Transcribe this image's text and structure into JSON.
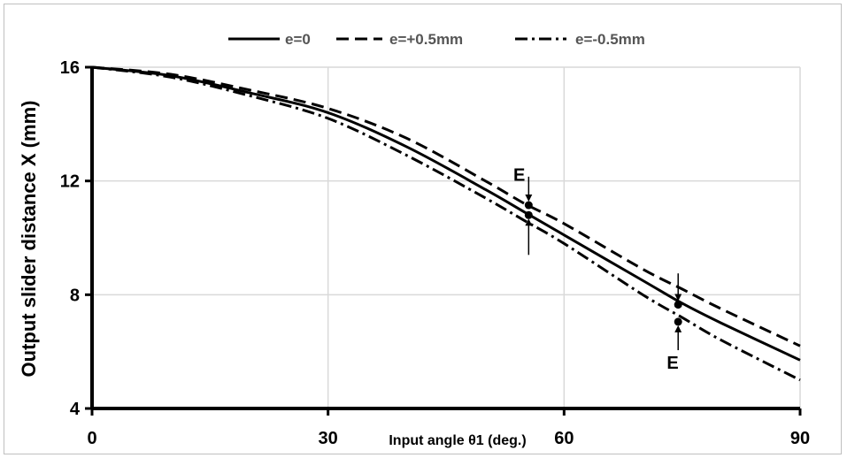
{
  "chart_data": {
    "type": "line",
    "title": "",
    "xlabel": "Input angle θ1 (deg.)",
    "ylabel": "Output slider distance X (mm)",
    "xlim": [
      0,
      90
    ],
    "ylim": [
      4,
      16
    ],
    "xticks": [
      0,
      30,
      60,
      90
    ],
    "yticks": [
      4,
      8,
      12,
      16
    ],
    "grid": true,
    "legend_position": "top",
    "series": [
      {
        "name": "e=0",
        "style": "solid",
        "color": "#000000",
        "x": [
          0,
          10,
          20,
          30,
          40,
          50,
          55,
          60,
          70,
          75,
          80,
          90
        ],
        "y": [
          16.0,
          15.7,
          15.1,
          14.4,
          13.2,
          11.7,
          10.9,
          10.1,
          8.5,
          7.7,
          7.0,
          5.7
        ]
      },
      {
        "name": "e=+0.5mm",
        "style": "dashed",
        "color": "#000000",
        "x": [
          0,
          10,
          20,
          30,
          40,
          50,
          55,
          60,
          70,
          75,
          80,
          90
        ],
        "y": [
          16.0,
          15.75,
          15.2,
          14.55,
          13.5,
          12.0,
          11.2,
          10.5,
          8.9,
          8.2,
          7.5,
          6.2
        ]
      },
      {
        "name": "e=-0.5mm",
        "style": "dash-dot",
        "color": "#000000",
        "x": [
          0,
          10,
          20,
          30,
          40,
          50,
          55,
          60,
          70,
          75,
          80,
          90
        ],
        "y": [
          16.0,
          15.65,
          15.0,
          14.2,
          12.9,
          11.4,
          10.6,
          9.8,
          8.0,
          7.2,
          6.4,
          5.0
        ]
      }
    ],
    "points": [
      {
        "x": 55.5,
        "y": 11.15
      },
      {
        "x": 55.5,
        "y": 10.8
      },
      {
        "x": 74.5,
        "y": 7.65
      },
      {
        "x": 74.5,
        "y": 7.05
      }
    ],
    "annotations": [
      {
        "text": "E",
        "x": 54.3,
        "y": 12.0
      },
      {
        "text": "E",
        "x": 73.8,
        "y": 5.4
      }
    ]
  }
}
